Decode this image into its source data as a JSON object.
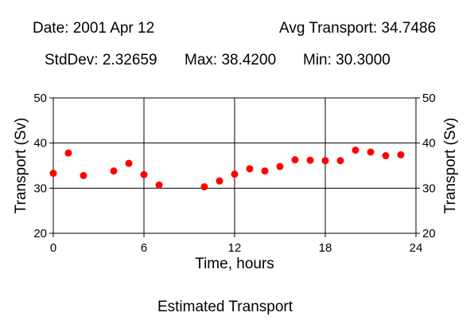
{
  "header": {
    "date": "Date: 2001 Apr 12",
    "avg": "Avg Transport: 34.7486",
    "stddev": "StdDev: 2.32659",
    "max": "Max: 38.4200",
    "min": "Min: 30.3000"
  },
  "caption": "Estimated Transport",
  "chart_data": {
    "type": "scatter",
    "title": "",
    "xlabel": "Time, hours",
    "ylabel": "Transport (Sv)",
    "ylabel_right": "Transport (Sv)",
    "xlim": [
      0,
      24
    ],
    "ylim": [
      20,
      50
    ],
    "x_ticks": [
      0,
      6,
      12,
      18,
      24
    ],
    "y_ticks": [
      20,
      30,
      40,
      50
    ],
    "grid": true,
    "legend": "none",
    "marker_color": "#ff0000",
    "series": [
      {
        "x": [
          0,
          1,
          2,
          4,
          5,
          6,
          7,
          10,
          11,
          12,
          13,
          14,
          15,
          16,
          17,
          18,
          19,
          20,
          21,
          22,
          23
        ],
        "y": [
          33.3,
          37.8,
          32.8,
          33.8,
          35.5,
          33.0,
          30.7,
          30.3,
          31.6,
          33.1,
          34.3,
          33.8,
          34.8,
          36.3,
          36.2,
          36.1,
          36.1,
          38.42,
          38.0,
          37.2,
          37.4
        ]
      }
    ]
  }
}
